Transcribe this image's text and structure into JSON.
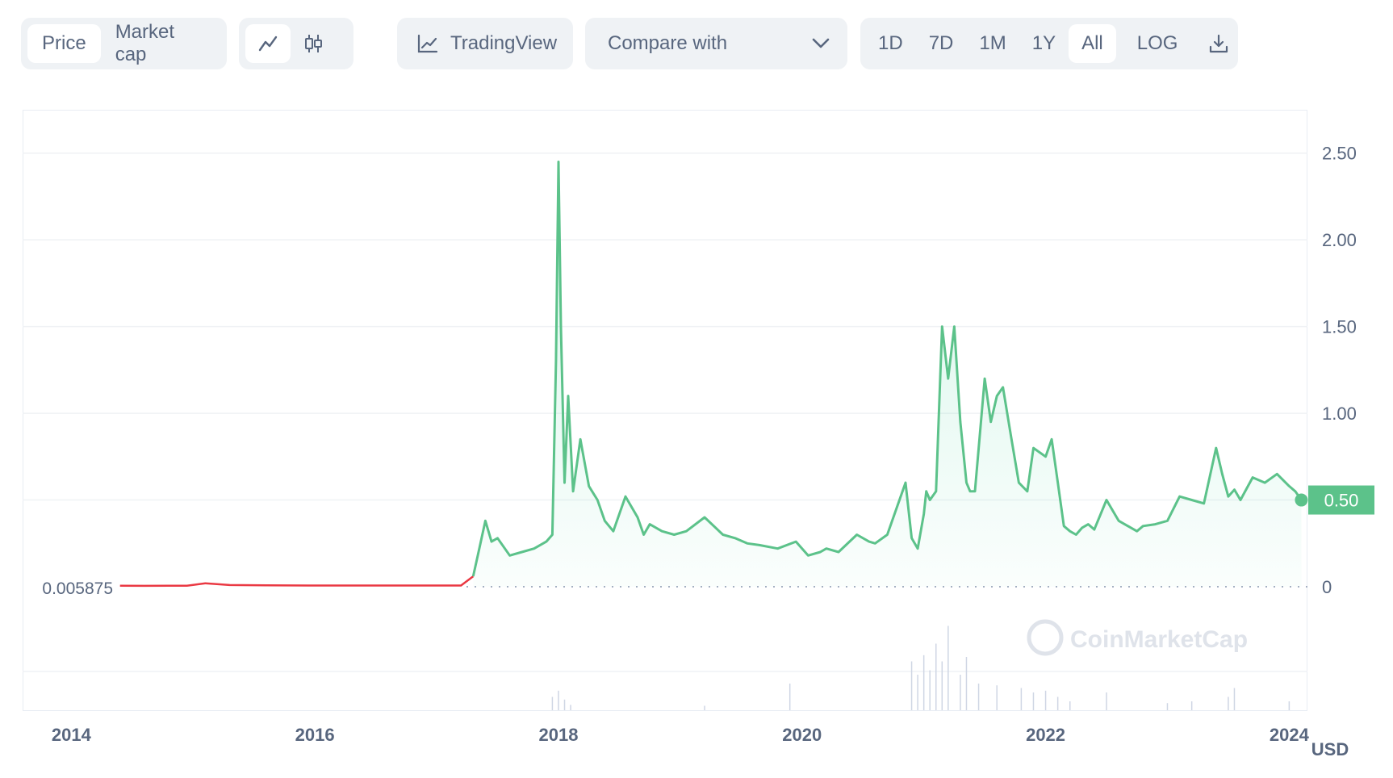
{
  "toolbar": {
    "metric_tabs": [
      {
        "label": "Price",
        "active": true
      },
      {
        "label": "Market cap",
        "active": false
      }
    ],
    "chart_style_icons": [
      {
        "icon": "line-chart-icon",
        "active": true
      },
      {
        "icon": "candlestick-icon",
        "active": false
      }
    ],
    "tradingview": {
      "label": "TradingView",
      "icon": "tradingview-chart-icon"
    },
    "compare": {
      "label": "Compare with",
      "icon": "chevron-down-icon"
    },
    "ranges": [
      {
        "label": "1D",
        "active": false
      },
      {
        "label": "7D",
        "active": false
      },
      {
        "label": "1M",
        "active": false
      },
      {
        "label": "1Y",
        "active": false
      },
      {
        "label": "All",
        "active": true
      }
    ],
    "log_label": "LOG",
    "download_icon": "download-icon"
  },
  "watermark": "CoinMarketCap",
  "colors": {
    "up": "#16c784",
    "line": "#5cc28a",
    "down": "#ea3943",
    "grid": "#eff2f5",
    "text": "#58667e"
  },
  "chart_data": {
    "type": "line",
    "title": "",
    "xlabel": "",
    "ylabel": "",
    "currency": "USD",
    "y_ticks": [
      "0",
      "0.50",
      "1.00",
      "1.50",
      "2.00",
      "2.50"
    ],
    "x_ticks": [
      "2014",
      "2016",
      "2018",
      "2020",
      "2022",
      "2024"
    ],
    "ylim": [
      0,
      2.75
    ],
    "xlim": [
      2013.6,
      2024.15
    ],
    "start_price_label": "0.005875",
    "current_price_label": "0.50",
    "current_price": 0.5,
    "series": [
      {
        "x": [
          2014.4,
          2014.6,
          2014.8,
          2014.95,
          2015.1,
          2015.3,
          2015.6,
          2016.0,
          2016.5,
          2017.0,
          2017.2,
          2017.3,
          2017.35,
          2017.4,
          2017.45,
          2017.5,
          2017.6,
          2017.7,
          2017.8,
          2017.9,
          2017.95,
          2017.98,
          2018.0,
          2018.02,
          2018.05,
          2018.08,
          2018.12,
          2018.18,
          2018.25,
          2018.32,
          2018.38,
          2018.45,
          2018.55,
          2018.65,
          2018.7,
          2018.75,
          2018.85,
          2018.95,
          2019.05,
          2019.2,
          2019.35,
          2019.45,
          2019.55,
          2019.65,
          2019.8,
          2019.95,
          2020.05,
          2020.15,
          2020.2,
          2020.3,
          2020.45,
          2020.55,
          2020.6,
          2020.7,
          2020.85,
          2020.9,
          2020.95,
          2021.0,
          2021.02,
          2021.05,
          2021.1,
          2021.15,
          2021.2,
          2021.25,
          2021.3,
          2021.35,
          2021.38,
          2021.42,
          2021.5,
          2021.55,
          2021.6,
          2021.65,
          2021.72,
          2021.78,
          2021.85,
          2021.9,
          2022.0,
          2022.05,
          2022.1,
          2022.15,
          2022.2,
          2022.25,
          2022.3,
          2022.35,
          2022.4,
          2022.5,
          2022.6,
          2022.75,
          2022.8,
          2022.9,
          2023.0,
          2023.1,
          2023.2,
          2023.3,
          2023.4,
          2023.45,
          2023.5,
          2023.55,
          2023.6,
          2023.7,
          2023.8,
          2023.9,
          2024.0,
          2024.05,
          2024.1
        ],
        "y": [
          0.006,
          0.005,
          0.006,
          0.006,
          0.02,
          0.01,
          0.008,
          0.007,
          0.007,
          0.007,
          0.007,
          0.06,
          0.22,
          0.38,
          0.26,
          0.28,
          0.18,
          0.2,
          0.22,
          0.26,
          0.3,
          1.3,
          2.45,
          1.5,
          0.6,
          1.1,
          0.55,
          0.85,
          0.58,
          0.5,
          0.38,
          0.32,
          0.52,
          0.4,
          0.3,
          0.36,
          0.32,
          0.3,
          0.32,
          0.4,
          0.3,
          0.28,
          0.25,
          0.24,
          0.22,
          0.26,
          0.18,
          0.2,
          0.22,
          0.2,
          0.3,
          0.26,
          0.25,
          0.3,
          0.6,
          0.28,
          0.22,
          0.42,
          0.55,
          0.5,
          0.55,
          1.5,
          1.2,
          1.5,
          0.95,
          0.6,
          0.55,
          0.55,
          1.2,
          0.95,
          1.1,
          1.15,
          0.85,
          0.6,
          0.55,
          0.8,
          0.75,
          0.85,
          0.6,
          0.35,
          0.32,
          0.3,
          0.34,
          0.36,
          0.33,
          0.5,
          0.38,
          0.32,
          0.35,
          0.36,
          0.38,
          0.52,
          0.5,
          0.48,
          0.8,
          0.65,
          0.52,
          0.56,
          0.5,
          0.63,
          0.6,
          0.65,
          0.58,
          0.55,
          0.5
        ]
      }
    ],
    "volume": {
      "x": [
        2017.95,
        2018.0,
        2018.05,
        2018.1,
        2019.2,
        2019.9,
        2020.9,
        2020.95,
        2021.0,
        2021.05,
        2021.1,
        2021.15,
        2021.2,
        2021.3,
        2021.35,
        2021.45,
        2021.6,
        2021.8,
        2021.9,
        2022.0,
        2022.1,
        2022.2,
        2022.5,
        2023.0,
        2023.2,
        2023.5,
        2023.55,
        2024.0
      ],
      "y": [
        0.15,
        0.22,
        0.12,
        0.06,
        0.05,
        0.3,
        0.55,
        0.4,
        0.62,
        0.45,
        0.75,
        0.55,
        0.95,
        0.4,
        0.6,
        0.3,
        0.28,
        0.25,
        0.2,
        0.22,
        0.15,
        0.1,
        0.2,
        0.08,
        0.1,
        0.15,
        0.25,
        0.1
      ]
    }
  }
}
